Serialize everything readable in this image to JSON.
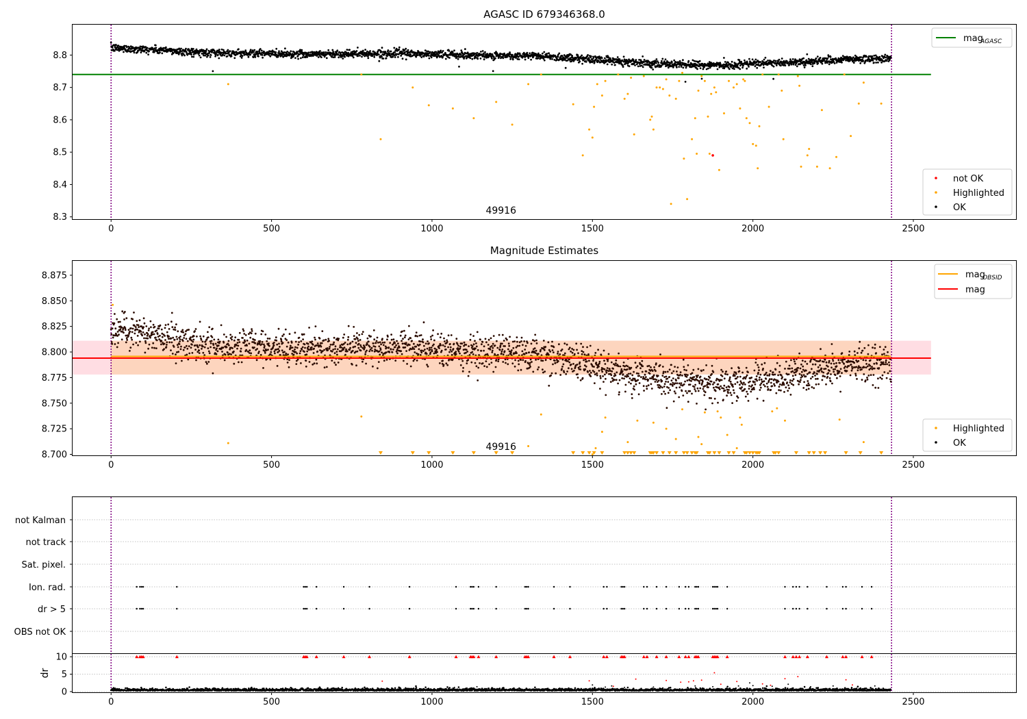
{
  "figure": {
    "panel1_title": "AGASC ID 679346368.0",
    "panel2_title": "Magnitude Estimates",
    "obsid_label": "49916"
  },
  "colors": {
    "ok": "#000000",
    "highlighted": "#ffa500",
    "not_ok": "#ff0000",
    "agasc_line": "#008000",
    "obsid_line": "#ffa500",
    "mag_line": "#ff0000",
    "obs_boundary": "#800080",
    "band_pink": "#ffdde3",
    "band_orange": "#fdd5be",
    "grid": "#b0b0b0",
    "dark_points": "#2b0c00"
  },
  "legends": {
    "panel1_lines": [
      {
        "label_main": "mag",
        "label_sub": "AGASC",
        "color": "#008000"
      }
    ],
    "panel1_markers": [
      {
        "label": "not OK",
        "color": "#ff0000"
      },
      {
        "label": "Highlighted",
        "color": "#ffa500"
      },
      {
        "label": "OK",
        "color": "#000000"
      }
    ],
    "panel2_lines": [
      {
        "label_main": "mag",
        "label_sub": "OBSID",
        "color": "#ffa500"
      },
      {
        "label_main": "mag",
        "label_sub": "",
        "color": "#ff0000"
      }
    ],
    "panel2_markers": [
      {
        "label": "Highlighted",
        "color": "#ffa500"
      },
      {
        "label": "OK",
        "color": "#000000"
      }
    ]
  },
  "chart_data": [
    {
      "type": "scatter",
      "title": "AGASC ID 679346368.0",
      "xlim": [
        -120,
        2820
      ],
      "ylim": [
        8.293,
        8.894
      ],
      "xticks": [
        0,
        500,
        1000,
        1500,
        2000,
        2500
      ],
      "xtick_labels": [
        "0",
        "500",
        "1000",
        "1500",
        "2000",
        "2500"
      ],
      "yticks": [
        8.3,
        8.4,
        8.5,
        8.6,
        8.7,
        8.8
      ],
      "ytick_labels": [
        "8.3",
        "8.4",
        "8.5",
        "8.6",
        "8.7",
        "8.8"
      ],
      "mag_agasc": 8.74,
      "mag_agasc_xrange": [
        -120,
        2555
      ],
      "obs_boundaries": [
        0,
        2432
      ],
      "obsid_text_x": 1215,
      "ok_series": {
        "n": 2430,
        "x_range": [
          0,
          2430
        ],
        "trend": [
          [
            0,
            8.822
          ],
          [
            100,
            8.818
          ],
          [
            300,
            8.807
          ],
          [
            600,
            8.803
          ],
          [
            900,
            8.805
          ],
          [
            1100,
            8.8
          ],
          [
            1350,
            8.797
          ],
          [
            1500,
            8.787
          ],
          [
            1600,
            8.78
          ],
          [
            1750,
            8.771
          ],
          [
            1900,
            8.768
          ],
          [
            2050,
            8.775
          ],
          [
            2200,
            8.781
          ],
          [
            2300,
            8.787
          ],
          [
            2430,
            8.788
          ]
        ],
        "scatter": 0.006
      },
      "highlighted": [
        [
          365,
          8.71
        ],
        [
          780,
          8.74
        ],
        [
          840,
          8.54
        ],
        [
          940,
          8.7
        ],
        [
          990,
          8.645
        ],
        [
          1065,
          8.635
        ],
        [
          1130,
          8.605
        ],
        [
          1200,
          8.655
        ],
        [
          1250,
          8.585
        ],
        [
          1300,
          8.71
        ],
        [
          1340,
          8.74
        ],
        [
          1440,
          8.648
        ],
        [
          1470,
          8.49
        ],
        [
          1490,
          8.57
        ],
        [
          1500,
          8.545
        ],
        [
          1505,
          8.64
        ],
        [
          1515,
          8.71
        ],
        [
          1530,
          8.675
        ],
        [
          1540,
          8.72
        ],
        [
          1580,
          8.74
        ],
        [
          1600,
          8.665
        ],
        [
          1610,
          8.68
        ],
        [
          1620,
          8.73
        ],
        [
          1630,
          8.555
        ],
        [
          1660,
          8.735
        ],
        [
          1680,
          8.6
        ],
        [
          1685,
          8.61
        ],
        [
          1690,
          8.57
        ],
        [
          1700,
          8.7
        ],
        [
          1710,
          8.7
        ],
        [
          1720,
          8.695
        ],
        [
          1730,
          8.725
        ],
        [
          1740,
          8.675
        ],
        [
          1745,
          8.34
        ],
        [
          1760,
          8.665
        ],
        [
          1770,
          8.72
        ],
        [
          1780,
          8.745
        ],
        [
          1785,
          8.48
        ],
        [
          1795,
          8.355
        ],
        [
          1810,
          8.54
        ],
        [
          1820,
          8.605
        ],
        [
          1825,
          8.495
        ],
        [
          1830,
          8.69
        ],
        [
          1840,
          8.735
        ],
        [
          1850,
          8.72
        ],
        [
          1860,
          8.61
        ],
        [
          1865,
          8.495
        ],
        [
          1870,
          8.68
        ],
        [
          1880,
          8.7
        ],
        [
          1885,
          8.685
        ],
        [
          1895,
          8.445
        ],
        [
          1910,
          8.62
        ],
        [
          1925,
          8.72
        ],
        [
          1940,
          8.7
        ],
        [
          1950,
          8.71
        ],
        [
          1960,
          8.635
        ],
        [
          1970,
          8.725
        ],
        [
          1975,
          8.72
        ],
        [
          1980,
          8.605
        ],
        [
          1990,
          8.59
        ],
        [
          2000,
          8.525
        ],
        [
          2010,
          8.52
        ],
        [
          2015,
          8.45
        ],
        [
          2020,
          8.58
        ],
        [
          2030,
          8.74
        ],
        [
          2050,
          8.64
        ],
        [
          2080,
          8.74
        ],
        [
          2090,
          8.69
        ],
        [
          2095,
          8.54
        ],
        [
          2140,
          8.735
        ],
        [
          2145,
          8.705
        ],
        [
          2150,
          8.455
        ],
        [
          2170,
          8.49
        ],
        [
          2175,
          8.51
        ],
        [
          2200,
          8.455
        ],
        [
          2215,
          8.63
        ],
        [
          2240,
          8.45
        ],
        [
          2260,
          8.485
        ],
        [
          2285,
          8.74
        ],
        [
          2305,
          8.55
        ],
        [
          2330,
          8.65
        ],
        [
          2345,
          8.715
        ],
        [
          2400,
          8.65
        ]
      ],
      "not_ok": [
        [
          1875,
          8.49
        ]
      ]
    },
    {
      "type": "scatter",
      "title": "Magnitude Estimates",
      "xlim": [
        -120,
        2820
      ],
      "ylim": [
        8.699,
        8.889
      ],
      "xticks": [
        0,
        500,
        1000,
        1500,
        2000,
        2500
      ],
      "xtick_labels": [
        "0",
        "500",
        "1000",
        "1500",
        "2000",
        "2500"
      ],
      "yticks": [
        8.7,
        8.725,
        8.75,
        8.775,
        8.8,
        8.825,
        8.85,
        8.875
      ],
      "ytick_labels": [
        "8.700",
        "8.725",
        "8.750",
        "8.775",
        "8.800",
        "8.825",
        "8.850",
        "8.875"
      ],
      "mag_obsid": 8.795,
      "mag": 8.794,
      "mag_band": [
        8.778,
        8.811
      ],
      "band_xrange": [
        -120,
        2555
      ],
      "obs_boundaries": [
        0,
        2432
      ],
      "obsid_text_x": 1215,
      "highlighted": [
        [
          5,
          8.846
        ],
        [
          365,
          8.711
        ],
        [
          780,
          8.737
        ],
        [
          1300,
          8.708
        ],
        [
          1340,
          8.739
        ],
        [
          1500,
          8.7
        ],
        [
          1510,
          8.706
        ],
        [
          1530,
          8.722
        ],
        [
          1540,
          8.736
        ],
        [
          1610,
          8.712
        ],
        [
          1640,
          8.733
        ],
        [
          1690,
          8.731
        ],
        [
          1730,
          8.725
        ],
        [
          1760,
          8.715
        ],
        [
          1780,
          8.744
        ],
        [
          1830,
          8.717
        ],
        [
          1840,
          8.71
        ],
        [
          1850,
          8.741
        ],
        [
          1890,
          8.742
        ],
        [
          1900,
          8.736
        ],
        [
          1920,
          8.719
        ],
        [
          1950,
          8.706
        ],
        [
          1960,
          8.736
        ],
        [
          1965,
          8.729
        ],
        [
          2060,
          8.742
        ],
        [
          2075,
          8.745
        ],
        [
          2100,
          8.733
        ],
        [
          2270,
          8.734
        ],
        [
          2345,
          8.712
        ]
      ],
      "below_range_x": [
        840,
        940,
        990,
        1065,
        1130,
        1200,
        1250,
        1440,
        1470,
        1490,
        1505,
        1530,
        1600,
        1610,
        1620,
        1630,
        1680,
        1685,
        1690,
        1700,
        1720,
        1740,
        1760,
        1785,
        1795,
        1810,
        1820,
        1825,
        1860,
        1865,
        1880,
        1895,
        1925,
        1940,
        1975,
        1980,
        1990,
        2000,
        2010,
        2015,
        2020,
        2065,
        2070,
        2080,
        2135,
        2175,
        2190,
        2210,
        2225,
        2290,
        2335,
        2400
      ]
    },
    {
      "type": "scatter",
      "title": "",
      "xlim": [
        -120,
        2820
      ],
      "categories": [
        "not Kalman",
        "not track",
        "Sat. pixel.",
        "Ion. rad.",
        "dr > 5",
        "OBS not OK"
      ],
      "flag_x": [
        80,
        90,
        95,
        100,
        205,
        600,
        605,
        610,
        640,
        725,
        805,
        930,
        1075,
        1120,
        1125,
        1130,
        1145,
        1200,
        1290,
        1295,
        1300,
        1380,
        1430,
        1535,
        1545,
        1590,
        1595,
        1600,
        1660,
        1670,
        1700,
        1730,
        1770,
        1790,
        1800,
        1820,
        1825,
        1830,
        1875,
        1880,
        1885,
        1890,
        1920,
        2100,
        2125,
        2135,
        2145,
        2170,
        2230,
        2280,
        2290,
        2340,
        2370
      ]
    },
    {
      "type": "scatter",
      "title": "",
      "xlim": [
        -120,
        2820
      ],
      "ylim": [
        -0.2,
        10.8
      ],
      "ylabel": "dr",
      "yticks": [
        0,
        5,
        10
      ],
      "ytick_labels": [
        "0",
        "5",
        "10"
      ],
      "xticks": [
        0,
        500,
        1000,
        1500,
        2000,
        2500
      ],
      "xtick_labels": [
        "0",
        "500",
        "1000",
        "1500",
        "2000",
        "2500"
      ],
      "obs_boundaries": [
        0,
        2432
      ],
      "red_scattered": [
        [
          845,
          3.0
        ],
        [
          1490,
          3.1
        ],
        [
          1565,
          1.5
        ],
        [
          1635,
          3.6
        ],
        [
          1730,
          3.2
        ],
        [
          1775,
          2.7
        ],
        [
          1800,
          2.8
        ],
        [
          1815,
          3.1
        ],
        [
          1840,
          3.3
        ],
        [
          1880,
          5.4
        ],
        [
          1900,
          2.1
        ],
        [
          1950,
          2.9
        ],
        [
          2030,
          2.2
        ],
        [
          2055,
          1.8
        ],
        [
          2100,
          3.7
        ],
        [
          2140,
          4.3
        ],
        [
          2290,
          3.4
        ],
        [
          2310,
          1.9
        ]
      ],
      "black_scattered": [
        [
          1070,
          1.2
        ],
        [
          1140,
          1.4
        ],
        [
          1500,
          1.9
        ],
        [
          1540,
          1.3
        ],
        [
          1560,
          1.6
        ],
        [
          1600,
          1.2
        ],
        [
          1690,
          1.3
        ],
        [
          1820,
          1.6
        ],
        [
          1875,
          1.4
        ],
        [
          1955,
          1.6
        ],
        [
          1990,
          2.5
        ],
        [
          2000,
          1.7
        ],
        [
          2060,
          1.5
        ],
        [
          2110,
          2.1
        ],
        [
          2180,
          1.4
        ],
        [
          2250,
          1.6
        ],
        [
          2380,
          1.6
        ]
      ]
    }
  ]
}
